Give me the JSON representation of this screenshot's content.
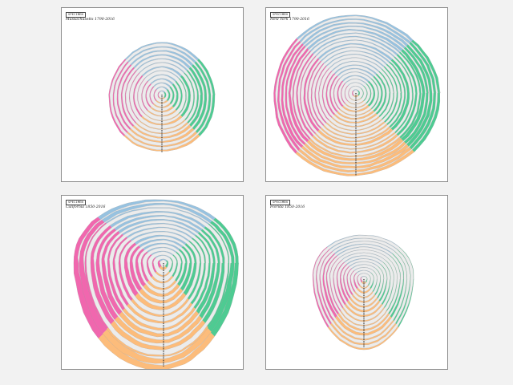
{
  "specimen_label": "SPECIMEN",
  "specimens": [
    {
      "title": "Massachusetts 1790-2016",
      "colors": {
        "north": "#8fbfe0",
        "east": "#3ec98a",
        "south": "#ffb870",
        "west": "#f25aa8"
      }
    },
    {
      "title": "New York 1790-2016",
      "colors": {
        "north": "#8fbfe0",
        "east": "#3ec98a",
        "south": "#ffb870",
        "west": "#f25aa8"
      }
    },
    {
      "title": "California 1850-2016",
      "colors": {
        "north": "#8fbfe0",
        "east": "#3ec98a",
        "south": "#ffb870",
        "west": "#f25aa8"
      }
    },
    {
      "title": "Florida 1850-2016",
      "colors": {
        "north": "#8fbfe0",
        "east": "#3ec98a",
        "south": "#ffb870",
        "west": "#f25aa8"
      }
    }
  ]
}
